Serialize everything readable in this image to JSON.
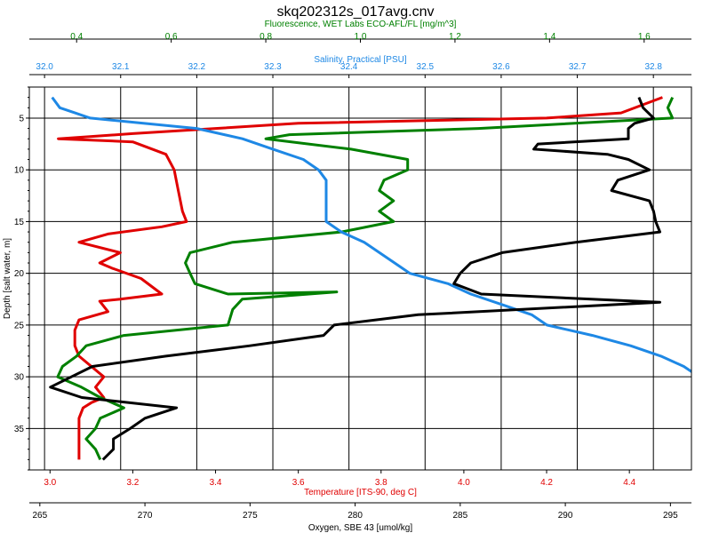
{
  "chart_data": {
    "type": "line",
    "title": "skq202312s_017avg.cnv",
    "y_axis": {
      "label": "Depth [salt water, m]",
      "range": [
        2,
        39
      ],
      "inverted": true,
      "ticks": [
        5,
        10,
        15,
        20,
        25,
        30,
        35
      ]
    },
    "x_axes": [
      {
        "id": "fluorescence",
        "position": "top",
        "label": "Fluorescence, WET Labs ECO-AFL/FL [mg/m^3]",
        "color": "#008000",
        "range": [
          0.3,
          1.7
        ],
        "ticks": [
          0.4,
          0.6,
          0.8,
          1.0,
          1.2,
          1.4,
          1.6
        ],
        "tick_labels": [
          "0.4",
          "0.6",
          "0.8",
          "1.0",
          "1.2",
          "1.4",
          "1.6"
        ]
      },
      {
        "id": "salinity",
        "position": "top",
        "label": "Salinity, Practical [PSU]",
        "color": "#1e88e5",
        "range": [
          31.98,
          32.85
        ],
        "ticks": [
          32.0,
          32.1,
          32.2,
          32.3,
          32.4,
          32.5,
          32.6,
          32.7,
          32.8
        ],
        "tick_labels": [
          "32.0",
          "32.1",
          "32.2",
          "32.3",
          "32.4",
          "32.5",
          "32.6",
          "32.7",
          "32.8"
        ]
      },
      {
        "id": "temperature",
        "position": "bottom",
        "label": "Temperature [ITS-90, deg C]",
        "color": "#e00000",
        "range": [
          2.95,
          4.55
        ],
        "ticks": [
          3.0,
          3.2,
          3.4,
          3.6,
          3.8,
          4.0,
          4.2,
          4.4
        ],
        "tick_labels": [
          "3.0",
          "3.2",
          "3.4",
          "3.6",
          "3.8",
          "4.0",
          "4.2",
          "4.4"
        ]
      },
      {
        "id": "oxygen",
        "position": "bottom",
        "label": "Oxygen, SBE 43 [umol/kg]",
        "color": "#000000",
        "range": [
          264.5,
          296
        ],
        "ticks": [
          265,
          270,
          275,
          280,
          285,
          290,
          295
        ],
        "tick_labels": [
          "265",
          "270",
          "275",
          "280",
          "285",
          "290",
          "295"
        ]
      }
    ],
    "series": [
      {
        "axis": "temperature",
        "color": "#e00000",
        "points": [
          [
            4.48,
            3
          ],
          [
            4.38,
            4.5
          ],
          [
            4.2,
            5
          ],
          [
            3.6,
            5.5
          ],
          [
            3.4,
            6
          ],
          [
            3.2,
            6.5
          ],
          [
            3.02,
            7
          ],
          [
            3.2,
            7.3
          ],
          [
            3.28,
            8.5
          ],
          [
            3.3,
            10
          ],
          [
            3.31,
            12
          ],
          [
            3.32,
            14
          ],
          [
            3.33,
            15
          ],
          [
            3.27,
            15.5
          ],
          [
            3.14,
            16.2
          ],
          [
            3.07,
            17
          ],
          [
            3.17,
            18
          ],
          [
            3.12,
            19
          ],
          [
            3.15,
            19.5
          ],
          [
            3.22,
            20.5
          ],
          [
            3.27,
            22
          ],
          [
            3.17,
            22.5
          ],
          [
            3.12,
            22.7
          ],
          [
            3.14,
            23.7
          ],
          [
            3.07,
            24.5
          ],
          [
            3.06,
            25.5
          ],
          [
            3.06,
            27
          ],
          [
            3.07,
            28
          ],
          [
            3.1,
            29
          ],
          [
            3.13,
            30
          ],
          [
            3.11,
            31
          ],
          [
            3.13,
            32
          ],
          [
            3.1,
            32.5
          ],
          [
            3.08,
            33
          ],
          [
            3.07,
            34
          ],
          [
            3.07,
            38
          ]
        ]
      },
      {
        "axis": "fluorescence",
        "color": "#008000",
        "points": [
          [
            1.66,
            3
          ],
          [
            1.65,
            4
          ],
          [
            1.66,
            5
          ],
          [
            1.25,
            6
          ],
          [
            0.85,
            6.6
          ],
          [
            0.8,
            7
          ],
          [
            0.98,
            8
          ],
          [
            1.1,
            9
          ],
          [
            1.1,
            10
          ],
          [
            1.05,
            11
          ],
          [
            1.04,
            12
          ],
          [
            1.07,
            13
          ],
          [
            1.04,
            14
          ],
          [
            1.07,
            15
          ],
          [
            0.96,
            16
          ],
          [
            0.73,
            17
          ],
          [
            0.64,
            18
          ],
          [
            0.63,
            19
          ],
          [
            0.64,
            20
          ],
          [
            0.65,
            21
          ],
          [
            0.72,
            22
          ],
          [
            0.95,
            21.8
          ],
          [
            0.75,
            22.5
          ],
          [
            0.73,
            23.5
          ],
          [
            0.72,
            25
          ],
          [
            0.5,
            26
          ],
          [
            0.42,
            27
          ],
          [
            0.4,
            28
          ],
          [
            0.37,
            29
          ],
          [
            0.36,
            30
          ],
          [
            0.41,
            31
          ],
          [
            0.45,
            32
          ],
          [
            0.5,
            33
          ],
          [
            0.45,
            34
          ],
          [
            0.44,
            35
          ],
          [
            0.42,
            36
          ],
          [
            0.44,
            37
          ],
          [
            0.45,
            38
          ]
        ]
      },
      {
        "axis": "salinity",
        "color": "#1e88e5",
        "points": [
          [
            32.01,
            3
          ],
          [
            32.02,
            4
          ],
          [
            32.04,
            4.5
          ],
          [
            32.06,
            5
          ],
          [
            32.13,
            5.5
          ],
          [
            32.2,
            6
          ],
          [
            32.26,
            7
          ],
          [
            32.3,
            8
          ],
          [
            32.34,
            9
          ],
          [
            32.36,
            10
          ],
          [
            32.37,
            11
          ],
          [
            32.37,
            12
          ],
          [
            32.37,
            15
          ],
          [
            32.39,
            16
          ],
          [
            32.42,
            17
          ],
          [
            32.46,
            19
          ],
          [
            32.48,
            20
          ],
          [
            32.53,
            21
          ],
          [
            32.56,
            22
          ],
          [
            32.6,
            23
          ],
          [
            32.64,
            24
          ],
          [
            32.66,
            25
          ],
          [
            32.72,
            26
          ],
          [
            32.77,
            27
          ],
          [
            32.81,
            28
          ],
          [
            32.84,
            29
          ],
          [
            32.86,
            30
          ],
          [
            32.88,
            31
          ],
          [
            32.95,
            32
          ],
          [
            33.02,
            33
          ],
          [
            33.07,
            34
          ],
          [
            33.08,
            35
          ],
          [
            33.08,
            38
          ]
        ]
      },
      {
        "axis": "oxygen",
        "color": "#000000",
        "points": [
          [
            293.5,
            3
          ],
          [
            293.7,
            4
          ],
          [
            294.2,
            5
          ],
          [
            293.3,
            5.5
          ],
          [
            293,
            6
          ],
          [
            293,
            7
          ],
          [
            288.7,
            7.5
          ],
          [
            288.5,
            8
          ],
          [
            292,
            8.5
          ],
          [
            293,
            9
          ],
          [
            294,
            10
          ],
          [
            292.5,
            11
          ],
          [
            292.2,
            12
          ],
          [
            294,
            13
          ],
          [
            294.2,
            14
          ],
          [
            294.3,
            15
          ],
          [
            294.5,
            16
          ],
          [
            290.5,
            17
          ],
          [
            287,
            18
          ],
          [
            285.5,
            19
          ],
          [
            285,
            20
          ],
          [
            284.7,
            21
          ],
          [
            286,
            22
          ],
          [
            294.5,
            22.8
          ],
          [
            283,
            24
          ],
          [
            279,
            25
          ],
          [
            278.5,
            26
          ],
          [
            275,
            27
          ],
          [
            271,
            28
          ],
          [
            267.5,
            29
          ],
          [
            266.5,
            30
          ],
          [
            265.5,
            31
          ],
          [
            267,
            32
          ],
          [
            271.5,
            33
          ],
          [
            270,
            34
          ],
          [
            269.3,
            35
          ],
          [
            268.5,
            36
          ],
          [
            268.5,
            37
          ],
          [
            268,
            38
          ]
        ]
      }
    ]
  }
}
